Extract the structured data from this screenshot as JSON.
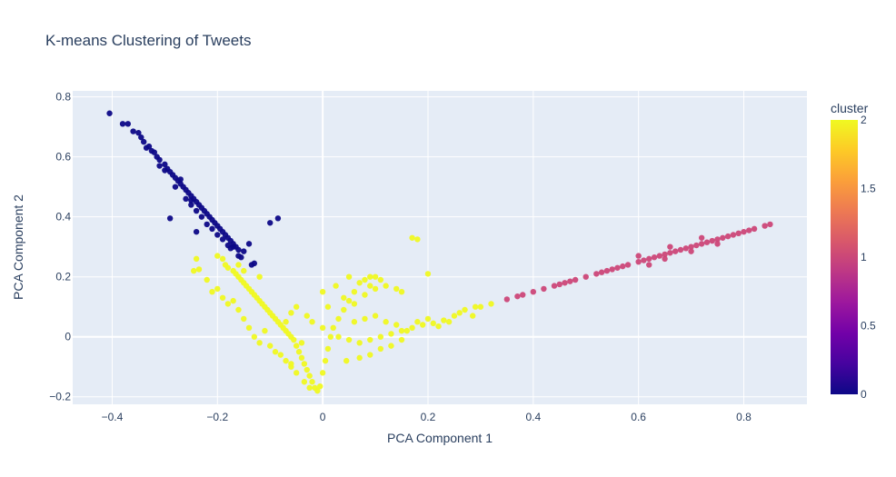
{
  "chart_data": {
    "type": "scatter",
    "title": "K-means Clustering of Tweets",
    "xlabel": "PCA Component 1",
    "ylabel": "PCA Component 2",
    "xlim": [
      -0.475,
      0.92
    ],
    "ylim": [
      -0.225,
      0.82
    ],
    "grid": true,
    "x_ticks": [
      "−0.4",
      "−0.2",
      "0",
      "0.2",
      "0.4",
      "0.6",
      "0.8"
    ],
    "x_tick_values": [
      -0.4,
      -0.2,
      0,
      0.2,
      0.4,
      0.6,
      0.8
    ],
    "y_ticks": [
      "−0.2",
      "0",
      "0.2",
      "0.4",
      "0.6",
      "0.8"
    ],
    "y_tick_values": [
      -0.2,
      0,
      0.2,
      0.4,
      0.6,
      0.8
    ],
    "colorbar": {
      "title": "cluster",
      "range": [
        0,
        2
      ],
      "ticks": [
        "0",
        "0.5",
        "1",
        "1.5",
        "2"
      ],
      "tick_values": [
        0,
        0.5,
        1,
        1.5,
        2
      ],
      "colorscale": [
        "#0d0887",
        "#46039f",
        "#7201a8",
        "#9c179e",
        "#bd3786",
        "#d8576b",
        "#ed7953",
        "#fb9f3a",
        "#fdca26",
        "#f0f921"
      ]
    },
    "cluster_colors": {
      "0": "#0d0887",
      "1": "#cc4778",
      "2": "#f0f921"
    },
    "series": [
      {
        "cluster": 0,
        "points": [
          [
            -0.405,
            0.745
          ],
          [
            -0.38,
            0.71
          ],
          [
            -0.37,
            0.71
          ],
          [
            -0.36,
            0.685
          ],
          [
            -0.35,
            0.68
          ],
          [
            -0.345,
            0.665
          ],
          [
            -0.34,
            0.65
          ],
          [
            -0.33,
            0.635
          ],
          [
            -0.325,
            0.62
          ],
          [
            -0.32,
            0.615
          ],
          [
            -0.315,
            0.6
          ],
          [
            -0.31,
            0.59
          ],
          [
            -0.3,
            0.575
          ],
          [
            -0.295,
            0.56
          ],
          [
            -0.29,
            0.55
          ],
          [
            -0.285,
            0.54
          ],
          [
            -0.28,
            0.53
          ],
          [
            -0.275,
            0.52
          ],
          [
            -0.27,
            0.51
          ],
          [
            -0.265,
            0.5
          ],
          [
            -0.26,
            0.49
          ],
          [
            -0.255,
            0.48
          ],
          [
            -0.25,
            0.47
          ],
          [
            -0.245,
            0.46
          ],
          [
            -0.24,
            0.45
          ],
          [
            -0.235,
            0.44
          ],
          [
            -0.23,
            0.43
          ],
          [
            -0.225,
            0.42
          ],
          [
            -0.22,
            0.41
          ],
          [
            -0.215,
            0.4
          ],
          [
            -0.21,
            0.39
          ],
          [
            -0.205,
            0.38
          ],
          [
            -0.2,
            0.37
          ],
          [
            -0.195,
            0.36
          ],
          [
            -0.19,
            0.35
          ],
          [
            -0.185,
            0.34
          ],
          [
            -0.18,
            0.33
          ],
          [
            -0.175,
            0.32
          ],
          [
            -0.17,
            0.31
          ],
          [
            -0.165,
            0.3
          ],
          [
            -0.16,
            0.29
          ],
          [
            -0.3,
            0.555
          ],
          [
            -0.27,
            0.525
          ],
          [
            -0.25,
            0.455
          ],
          [
            -0.24,
            0.42
          ],
          [
            -0.22,
            0.375
          ],
          [
            -0.2,
            0.34
          ],
          [
            -0.18,
            0.305
          ],
          [
            -0.29,
            0.395
          ],
          [
            -0.24,
            0.35
          ],
          [
            -0.1,
            0.38
          ],
          [
            -0.155,
            0.265
          ],
          [
            -0.135,
            0.24
          ],
          [
            -0.17,
            0.3
          ],
          [
            -0.23,
            0.4
          ],
          [
            -0.25,
            0.44
          ],
          [
            -0.28,
            0.5
          ],
          [
            -0.31,
            0.57
          ],
          [
            -0.335,
            0.63
          ],
          [
            -0.26,
            0.46
          ],
          [
            -0.21,
            0.36
          ],
          [
            -0.19,
            0.325
          ],
          [
            -0.175,
            0.295
          ],
          [
            -0.16,
            0.27
          ],
          [
            -0.15,
            0.285
          ],
          [
            -0.14,
            0.31
          ],
          [
            -0.13,
            0.245
          ],
          [
            -0.085,
            0.395
          ]
        ]
      },
      {
        "cluster": 1,
        "points": [
          [
            0.35,
            0.125
          ],
          [
            0.37,
            0.135
          ],
          [
            0.38,
            0.14
          ],
          [
            0.4,
            0.15
          ],
          [
            0.42,
            0.16
          ],
          [
            0.44,
            0.17
          ],
          [
            0.46,
            0.18
          ],
          [
            0.48,
            0.19
          ],
          [
            0.5,
            0.2
          ],
          [
            0.52,
            0.21
          ],
          [
            0.54,
            0.22
          ],
          [
            0.56,
            0.23
          ],
          [
            0.58,
            0.24
          ],
          [
            0.6,
            0.25
          ],
          [
            0.62,
            0.26
          ],
          [
            0.64,
            0.27
          ],
          [
            0.66,
            0.28
          ],
          [
            0.68,
            0.29
          ],
          [
            0.7,
            0.3
          ],
          [
            0.72,
            0.31
          ],
          [
            0.74,
            0.32
          ],
          [
            0.76,
            0.33
          ],
          [
            0.78,
            0.34
          ],
          [
            0.8,
            0.35
          ],
          [
            0.82,
            0.36
          ],
          [
            0.84,
            0.37
          ],
          [
            0.85,
            0.375
          ],
          [
            0.47,
            0.185
          ],
          [
            0.53,
            0.215
          ],
          [
            0.57,
            0.235
          ],
          [
            0.61,
            0.255
          ],
          [
            0.63,
            0.265
          ],
          [
            0.65,
            0.275
          ],
          [
            0.67,
            0.285
          ],
          [
            0.69,
            0.295
          ],
          [
            0.71,
            0.305
          ],
          [
            0.73,
            0.315
          ],
          [
            0.75,
            0.325
          ],
          [
            0.77,
            0.335
          ],
          [
            0.79,
            0.345
          ],
          [
            0.81,
            0.355
          ],
          [
            0.6,
            0.27
          ],
          [
            0.65,
            0.26
          ],
          [
            0.7,
            0.285
          ],
          [
            0.62,
            0.24
          ],
          [
            0.75,
            0.31
          ],
          [
            0.55,
            0.225
          ],
          [
            0.45,
            0.175
          ],
          [
            0.66,
            0.3
          ],
          [
            0.72,
            0.33
          ]
        ]
      },
      {
        "cluster": 2,
        "points": [
          [
            -0.2,
            0.27
          ],
          [
            -0.19,
            0.26
          ],
          [
            -0.185,
            0.24
          ],
          [
            -0.18,
            0.23
          ],
          [
            -0.17,
            0.22
          ],
          [
            -0.165,
            0.21
          ],
          [
            -0.16,
            0.2
          ],
          [
            -0.155,
            0.19
          ],
          [
            -0.15,
            0.18
          ],
          [
            -0.145,
            0.17
          ],
          [
            -0.14,
            0.16
          ],
          [
            -0.135,
            0.15
          ],
          [
            -0.13,
            0.14
          ],
          [
            -0.125,
            0.13
          ],
          [
            -0.12,
            0.12
          ],
          [
            -0.115,
            0.11
          ],
          [
            -0.11,
            0.1
          ],
          [
            -0.105,
            0.09
          ],
          [
            -0.1,
            0.08
          ],
          [
            -0.095,
            0.07
          ],
          [
            -0.09,
            0.06
          ],
          [
            -0.085,
            0.05
          ],
          [
            -0.08,
            0.04
          ],
          [
            -0.075,
            0.03
          ],
          [
            -0.07,
            0.02
          ],
          [
            -0.065,
            0.01
          ],
          [
            -0.06,
            0.0
          ],
          [
            -0.055,
            -0.01
          ],
          [
            -0.05,
            -0.03
          ],
          [
            -0.045,
            -0.05
          ],
          [
            -0.04,
            -0.07
          ],
          [
            -0.035,
            -0.09
          ],
          [
            -0.03,
            -0.11
          ],
          [
            -0.025,
            -0.13
          ],
          [
            -0.02,
            -0.15
          ],
          [
            -0.015,
            -0.17
          ],
          [
            -0.01,
            -0.18
          ],
          [
            -0.005,
            -0.165
          ],
          [
            0.0,
            -0.12
          ],
          [
            0.005,
            -0.08
          ],
          [
            0.01,
            -0.04
          ],
          [
            0.015,
            0.0
          ],
          [
            0.02,
            0.03
          ],
          [
            0.03,
            0.06
          ],
          [
            0.04,
            0.09
          ],
          [
            0.05,
            0.12
          ],
          [
            0.06,
            0.15
          ],
          [
            0.07,
            0.18
          ],
          [
            0.08,
            0.19
          ],
          [
            0.09,
            0.2
          ],
          [
            0.1,
            0.2
          ],
          [
            0.03,
            0.0
          ],
          [
            0.05,
            -0.01
          ],
          [
            0.07,
            -0.02
          ],
          [
            0.09,
            -0.01
          ],
          [
            0.11,
            0.0
          ],
          [
            0.13,
            0.01
          ],
          [
            0.15,
            0.02
          ],
          [
            0.17,
            0.03
          ],
          [
            0.19,
            0.04
          ],
          [
            0.21,
            0.045
          ],
          [
            0.23,
            0.055
          ],
          [
            0.25,
            0.07
          ],
          [
            0.27,
            0.09
          ],
          [
            0.29,
            0.1
          ],
          [
            0.3,
            0.1
          ],
          [
            0.32,
            0.11
          ],
          [
            0.17,
            0.33
          ],
          [
            0.18,
            0.325
          ],
          [
            -0.24,
            0.26
          ],
          [
            -0.235,
            0.225
          ],
          [
            -0.245,
            0.22
          ],
          [
            -0.22,
            0.19
          ],
          [
            -0.21,
            0.15
          ],
          [
            -0.2,
            0.16
          ],
          [
            -0.19,
            0.13
          ],
          [
            -0.18,
            0.11
          ],
          [
            -0.17,
            0.12
          ],
          [
            -0.16,
            0.09
          ],
          [
            -0.15,
            0.06
          ],
          [
            -0.14,
            0.03
          ],
          [
            -0.13,
            0.0
          ],
          [
            -0.12,
            -0.02
          ],
          [
            -0.11,
            0.02
          ],
          [
            -0.1,
            -0.03
          ],
          [
            -0.09,
            -0.05
          ],
          [
            -0.08,
            -0.06
          ],
          [
            -0.07,
            -0.08
          ],
          [
            -0.06,
            -0.09
          ],
          [
            0.0,
            0.03
          ],
          [
            -0.02,
            0.05
          ],
          [
            -0.03,
            0.07
          ],
          [
            0.01,
            0.1
          ],
          [
            0.04,
            0.13
          ],
          [
            0.06,
            0.11
          ],
          [
            0.08,
            0.14
          ],
          [
            0.1,
            0.16
          ],
          [
            0.12,
            0.17
          ],
          [
            0.14,
            0.16
          ],
          [
            0.09,
            0.17
          ],
          [
            0.11,
            0.19
          ],
          [
            0.06,
            0.05
          ],
          [
            0.08,
            0.06
          ],
          [
            0.1,
            0.07
          ],
          [
            0.12,
            0.05
          ],
          [
            0.14,
            0.04
          ],
          [
            0.16,
            0.02
          ],
          [
            0.18,
            0.05
          ],
          [
            0.2,
            0.06
          ],
          [
            0.22,
            0.035
          ],
          [
            0.24,
            0.05
          ],
          [
            0.26,
            0.08
          ],
          [
            0.285,
            0.07
          ],
          [
            0.045,
            -0.08
          ],
          [
            0.07,
            -0.07
          ],
          [
            0.09,
            -0.06
          ],
          [
            0.11,
            -0.04
          ],
          [
            0.13,
            -0.03
          ],
          [
            0.15,
            -0.01
          ],
          [
            -0.025,
            -0.17
          ],
          [
            -0.035,
            -0.15
          ],
          [
            -0.05,
            -0.12
          ],
          [
            -0.06,
            -0.1
          ],
          [
            -0.04,
            -0.02
          ],
          [
            -0.07,
            0.05
          ],
          [
            -0.06,
            0.08
          ],
          [
            -0.05,
            0.1
          ],
          [
            0.2,
            0.21
          ],
          [
            0.15,
            0.15
          ],
          [
            0.05,
            0.2
          ],
          [
            0.025,
            0.17
          ],
          [
            0.0,
            0.15
          ],
          [
            -0.15,
            0.22
          ],
          [
            -0.16,
            0.24
          ],
          [
            -0.12,
            0.2
          ]
        ]
      }
    ]
  }
}
